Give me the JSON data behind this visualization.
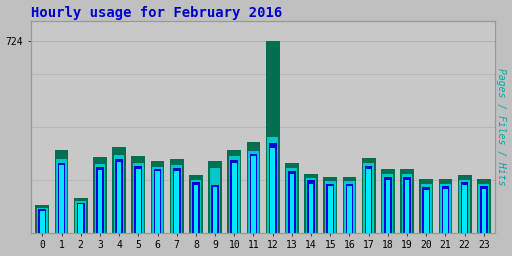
{
  "title": "Hourly usage for February 2016",
  "hours": [
    0,
    1,
    2,
    3,
    4,
    5,
    6,
    7,
    8,
    9,
    10,
    11,
    12,
    13,
    14,
    15,
    16,
    17,
    18,
    19,
    20,
    21,
    22,
    23
  ],
  "hits": [
    82,
    255,
    108,
    238,
    268,
    242,
    232,
    235,
    182,
    172,
    265,
    288,
    320,
    220,
    185,
    175,
    175,
    240,
    198,
    198,
    162,
    165,
    182,
    165
  ],
  "files": [
    88,
    265,
    112,
    248,
    278,
    252,
    242,
    246,
    192,
    182,
    275,
    296,
    340,
    235,
    198,
    185,
    185,
    252,
    212,
    212,
    172,
    175,
    192,
    175
  ],
  "pages": [
    95,
    280,
    120,
    260,
    295,
    265,
    250,
    255,
    200,
    245,
    290,
    310,
    360,
    245,
    205,
    195,
    195,
    265,
    220,
    220,
    185,
    185,
    200,
    185
  ],
  "green": [
    105,
    312,
    132,
    287,
    322,
    288,
    272,
    278,
    218,
    272,
    312,
    342,
    724,
    264,
    222,
    210,
    210,
    282,
    242,
    242,
    202,
    202,
    217,
    202
  ],
  "color_hits": "#00e8ff",
  "color_files": "#0000e0",
  "color_pages": "#00c8c8",
  "color_green": "#007050",
  "bg_color": "#c0c0c0",
  "plot_bg": "#c8c8c8",
  "ylabel_right": "Pages / Files / Hits",
  "ytick_label": "724",
  "ylim_max": 800,
  "title_color": "#0000cc",
  "ylabel_color": "#00aaaa",
  "title_fontsize": 10,
  "tick_fontsize": 7
}
